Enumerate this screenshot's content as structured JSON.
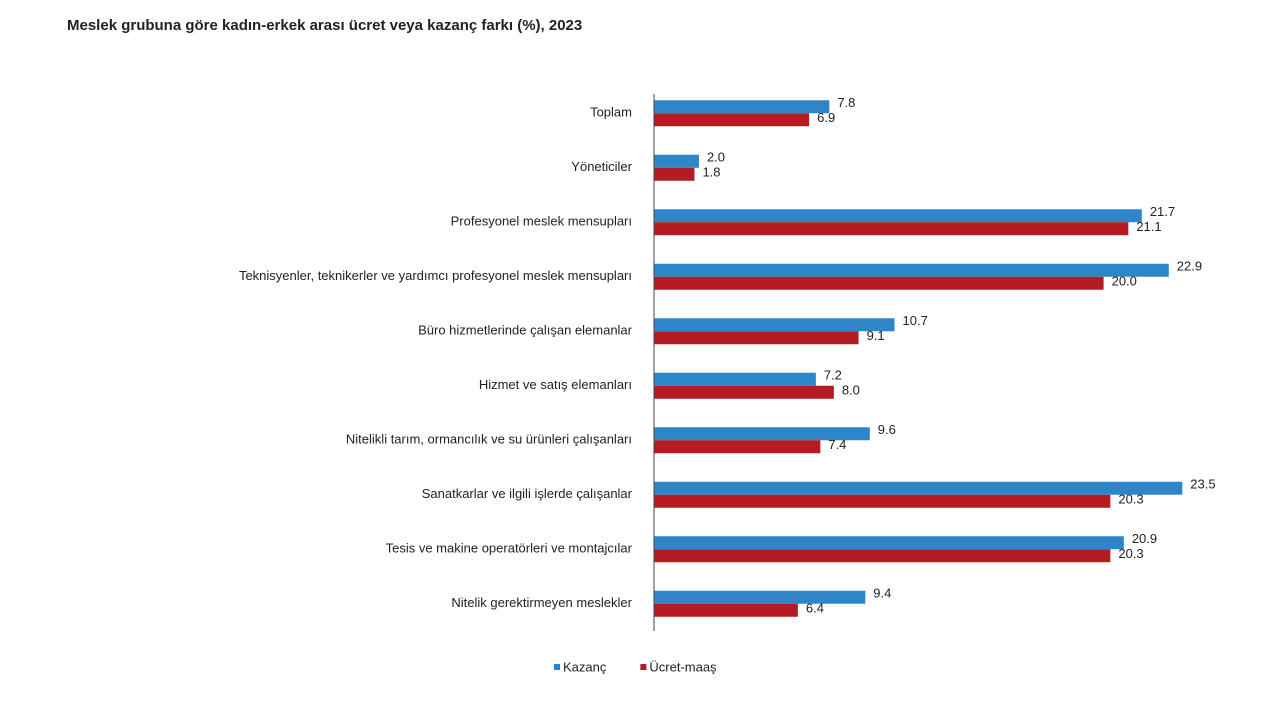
{
  "chart_data": {
    "type": "barh",
    "title": "Meslek grubuna göre kadın-erkek arası ücret veya kazanç farkı (%), 2023",
    "categories": [
      "Toplam",
      "Yöneticiler",
      "Profesyonel meslek mensupları",
      "Teknisyenler, teknikerler ve yardımcı profesyonel meslek mensupları",
      "Büro hizmetlerinde çalışan elemanlar",
      "Hizmet ve satış elemanları",
      "Nitelikli tarım, ormancılık ve su ürünleri çalışanları",
      "Sanatkarlar ve ilgili işlerde çalışanlar",
      "Tesis ve makine operatörleri ve montajcılar",
      "Nitelik gerektirmeyen meslekler"
    ],
    "series": [
      {
        "name": "Kazanç",
        "color": "#2e86c8",
        "values": [
          7.8,
          2,
          21.7,
          22.9,
          10.7,
          7.2,
          9.6,
          23.5,
          20.9,
          9.4
        ],
        "value_labels": [
          "7.8",
          "2.0",
          "21.7",
          "22.9",
          "10.7",
          "7.2",
          "9.6",
          "23.5",
          "20.9",
          "9.4"
        ]
      },
      {
        "name": "Ücret-maaş",
        "color": "#b41c22",
        "values": [
          6.9,
          1.8,
          21.1,
          20,
          9.1,
          8,
          7.4,
          20.3,
          20.3,
          6.4
        ],
        "value_labels": [
          "6.9",
          "1.8",
          "21.1",
          "20.0",
          "9.1",
          "8.0",
          "7.4",
          "20.3",
          "20.3",
          "6.4"
        ]
      }
    ],
    "xlim": [
      0,
      25
    ],
    "legend": "bottom"
  }
}
